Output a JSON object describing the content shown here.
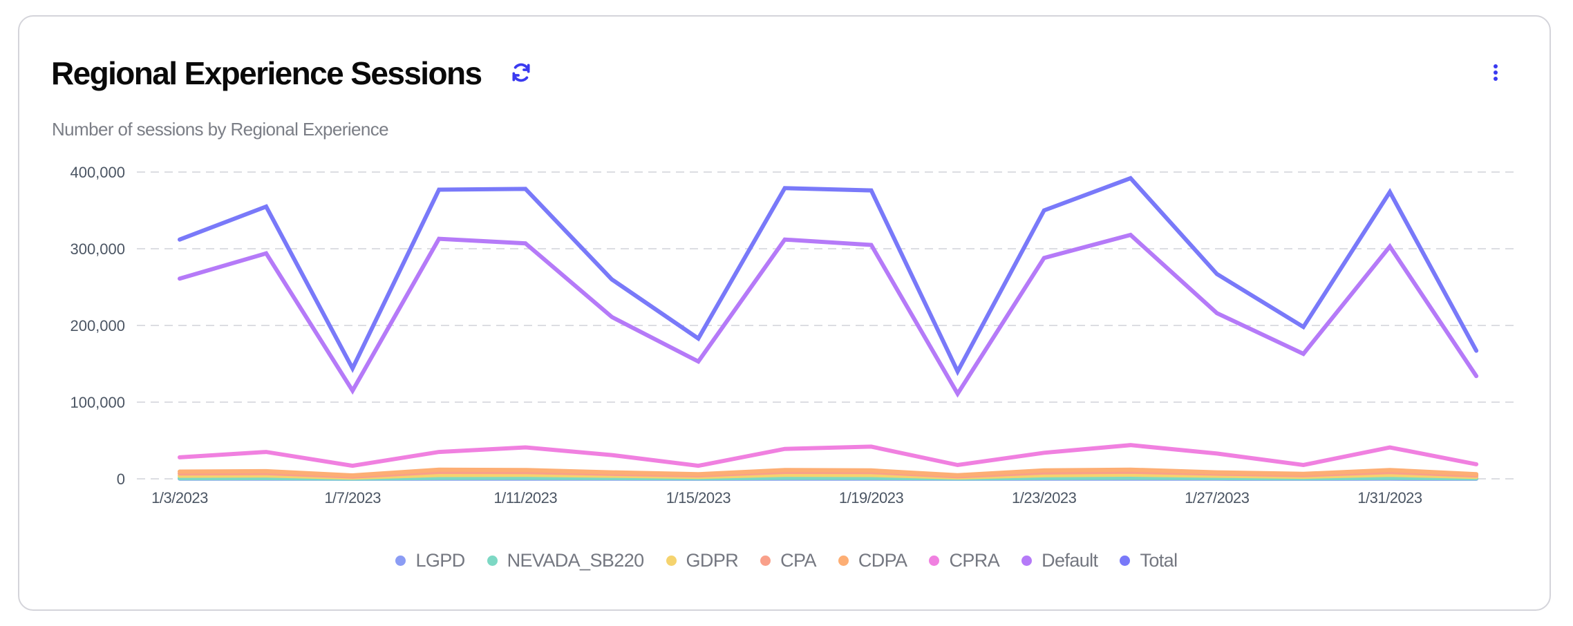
{
  "header": {
    "title": "Regional Experience Sessions",
    "subtitle": "Number of sessions by Regional Experience",
    "refresh_icon": "refresh-icon",
    "menu_icon": "kebab-menu-icon",
    "accent_color": "#3a3af0"
  },
  "chart_data": {
    "type": "line",
    "title": "Regional Experience Sessions",
    "subtitle": "Number of sessions by Regional Experience",
    "xlabel": "",
    "ylabel": "",
    "ylim": [
      0,
      400000
    ],
    "yticks": [
      0,
      100000,
      200000,
      300000,
      400000
    ],
    "ytick_labels": [
      "0",
      "100,000",
      "200,000",
      "300,000",
      "400,000"
    ],
    "grid": true,
    "legend_position": "bottom",
    "x": [
      "1/3/2023",
      "1/5/2023",
      "1/7/2023",
      "1/9/2023",
      "1/11/2023",
      "1/13/2023",
      "1/15/2023",
      "1/17/2023",
      "1/19/2023",
      "1/21/2023",
      "1/23/2023",
      "1/25/2023",
      "1/27/2023",
      "1/29/2023",
      "1/31/2023",
      "2/2/2023"
    ],
    "xtick_labels": [
      {
        "index": 0,
        "label": "1/3/2023"
      },
      {
        "index": 2,
        "label": "1/7/2023"
      },
      {
        "index": 4,
        "label": "1/11/2023"
      },
      {
        "index": 6,
        "label": "1/15/2023"
      },
      {
        "index": 8,
        "label": "1/19/2023"
      },
      {
        "index": 10,
        "label": "1/23/2023"
      },
      {
        "index": 12,
        "label": "1/27/2023"
      },
      {
        "index": 14,
        "label": "1/31/2023"
      }
    ],
    "series": [
      {
        "name": "LGPD",
        "color": "#8b9cf4",
        "values": [
          200,
          200,
          100,
          200,
          200,
          200,
          100,
          200,
          200,
          100,
          200,
          200,
          200,
          100,
          200,
          100
        ]
      },
      {
        "name": "NEVADA_SB220",
        "color": "#7dd8c4",
        "values": [
          800,
          900,
          400,
          1200,
          1300,
          1000,
          600,
          1300,
          1200,
          500,
          1100,
          1300,
          1000,
          700,
          1200,
          600
        ]
      },
      {
        "name": "GDPR",
        "color": "#f5d36e",
        "values": [
          4000,
          4200,
          1500,
          5000,
          5200,
          4000,
          2500,
          5200,
          5000,
          1800,
          4600,
          5400,
          4000,
          2600,
          5200,
          2400
        ]
      },
      {
        "name": "CPA",
        "color": "#f9a08a",
        "values": [
          7000,
          7500,
          3000,
          9000,
          8800,
          6500,
          4500,
          9000,
          8800,
          3200,
          8200,
          9200,
          6800,
          4800,
          8800,
          4300
        ]
      },
      {
        "name": "CDPA",
        "color": "#fdae74",
        "values": [
          9500,
          10000,
          4500,
          12000,
          11500,
          8500,
          6000,
          11500,
          11000,
          4800,
          11000,
          12000,
          8500,
          6500,
          11500,
          6000
        ]
      },
      {
        "name": "CPRA",
        "color": "#f080e0",
        "values": [
          28000,
          35000,
          17000,
          35000,
          41000,
          31000,
          17000,
          39000,
          42000,
          18000,
          34000,
          44000,
          33000,
          18000,
          41000,
          19000
        ]
      },
      {
        "name": "Default",
        "color": "#b57af8",
        "values": [
          261000,
          294000,
          115000,
          313000,
          307000,
          211000,
          153000,
          312000,
          305000,
          111000,
          288000,
          318000,
          216000,
          163000,
          303000,
          134000
        ]
      },
      {
        "name": "Total",
        "color": "#7979f9",
        "values": [
          312000,
          355000,
          144000,
          377000,
          378000,
          260000,
          183000,
          379000,
          376000,
          140000,
          350000,
          392000,
          267000,
          198000,
          374000,
          167000
        ]
      }
    ]
  }
}
